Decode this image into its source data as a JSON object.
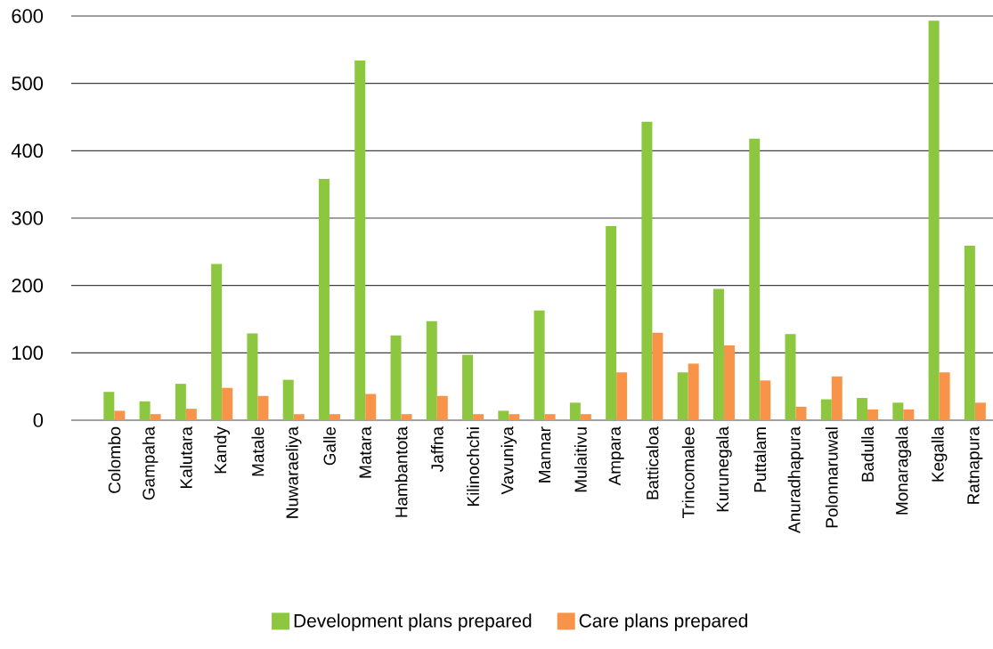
{
  "chart_data": {
    "type": "bar",
    "categories": [
      "Colombo",
      "Gampaha",
      "Kalutara",
      "Kandy",
      "Matale",
      "Nuwaraeliya",
      "Galle",
      "Matara",
      "Hambantota",
      "Jaffna",
      "Kilinochchi",
      "Vavuniya",
      "Mannar",
      "Mulaitivu",
      "Ampara",
      "Batticaloa",
      "Trincomalee",
      "Kurunegala",
      "Puttalam",
      "Anuradhapura",
      "Polonnaruwal",
      "Badulla",
      "Monaragala",
      "Kegalla",
      "Ratnapura"
    ],
    "series": [
      {
        "name": "Development plans prepared",
        "color": "#8dc63f",
        "values": [
          42,
          28,
          54,
          232,
          129,
          60,
          358,
          534,
          126,
          147,
          97,
          14,
          163,
          26,
          288,
          443,
          71,
          195,
          418,
          128,
          31,
          33,
          26,
          593,
          259
        ]
      },
      {
        "name": "Care plans prepared",
        "color": "#f7944a",
        "values": [
          14,
          9,
          17,
          48,
          36,
          9,
          9,
          39,
          9,
          36,
          9,
          9,
          9,
          9,
          71,
          130,
          84,
          111,
          59,
          20,
          65,
          16,
          16,
          71,
          26
        ]
      }
    ],
    "ylim": [
      0,
      600
    ],
    "yticks": [
      0,
      100,
      200,
      300,
      400,
      500,
      600
    ],
    "grid": "y",
    "legend": "bottom"
  }
}
